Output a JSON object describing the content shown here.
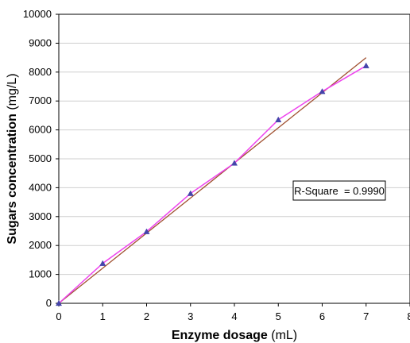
{
  "chart_data": {
    "type": "scatter",
    "x": [
      0,
      1,
      2,
      3,
      4,
      5,
      6,
      7
    ],
    "series": [
      {
        "values": [
          0,
          1380,
          2480,
          3800,
          4850,
          6350,
          7330,
          8220
        ],
        "color": "#ee44ee",
        "marker": "triangle",
        "marker_color": "#4444aa"
      },
      {
        "type": "trendline",
        "x": [
          0,
          7
        ],
        "values": [
          0,
          8500
        ],
        "color": "#a05030"
      }
    ],
    "xlabel_bold": "Enzyme dosage",
    "xlabel_unit": "(mL)",
    "ylabel_bold": "Sugars concentration",
    "ylabel_unit": "(mg/L)",
    "xlim": [
      0,
      8
    ],
    "ylim": [
      0,
      10000
    ],
    "xticks": [
      "0",
      "1",
      "2",
      "3",
      "4",
      "5",
      "6",
      "7",
      "8"
    ],
    "yticks": [
      "0",
      "1000",
      "2000",
      "3000",
      "4000",
      "5000",
      "6000",
      "7000",
      "8000",
      "9000",
      "10000"
    ],
    "grid": true,
    "annotation": {
      "text": "R-Square  = 0.9990"
    }
  }
}
